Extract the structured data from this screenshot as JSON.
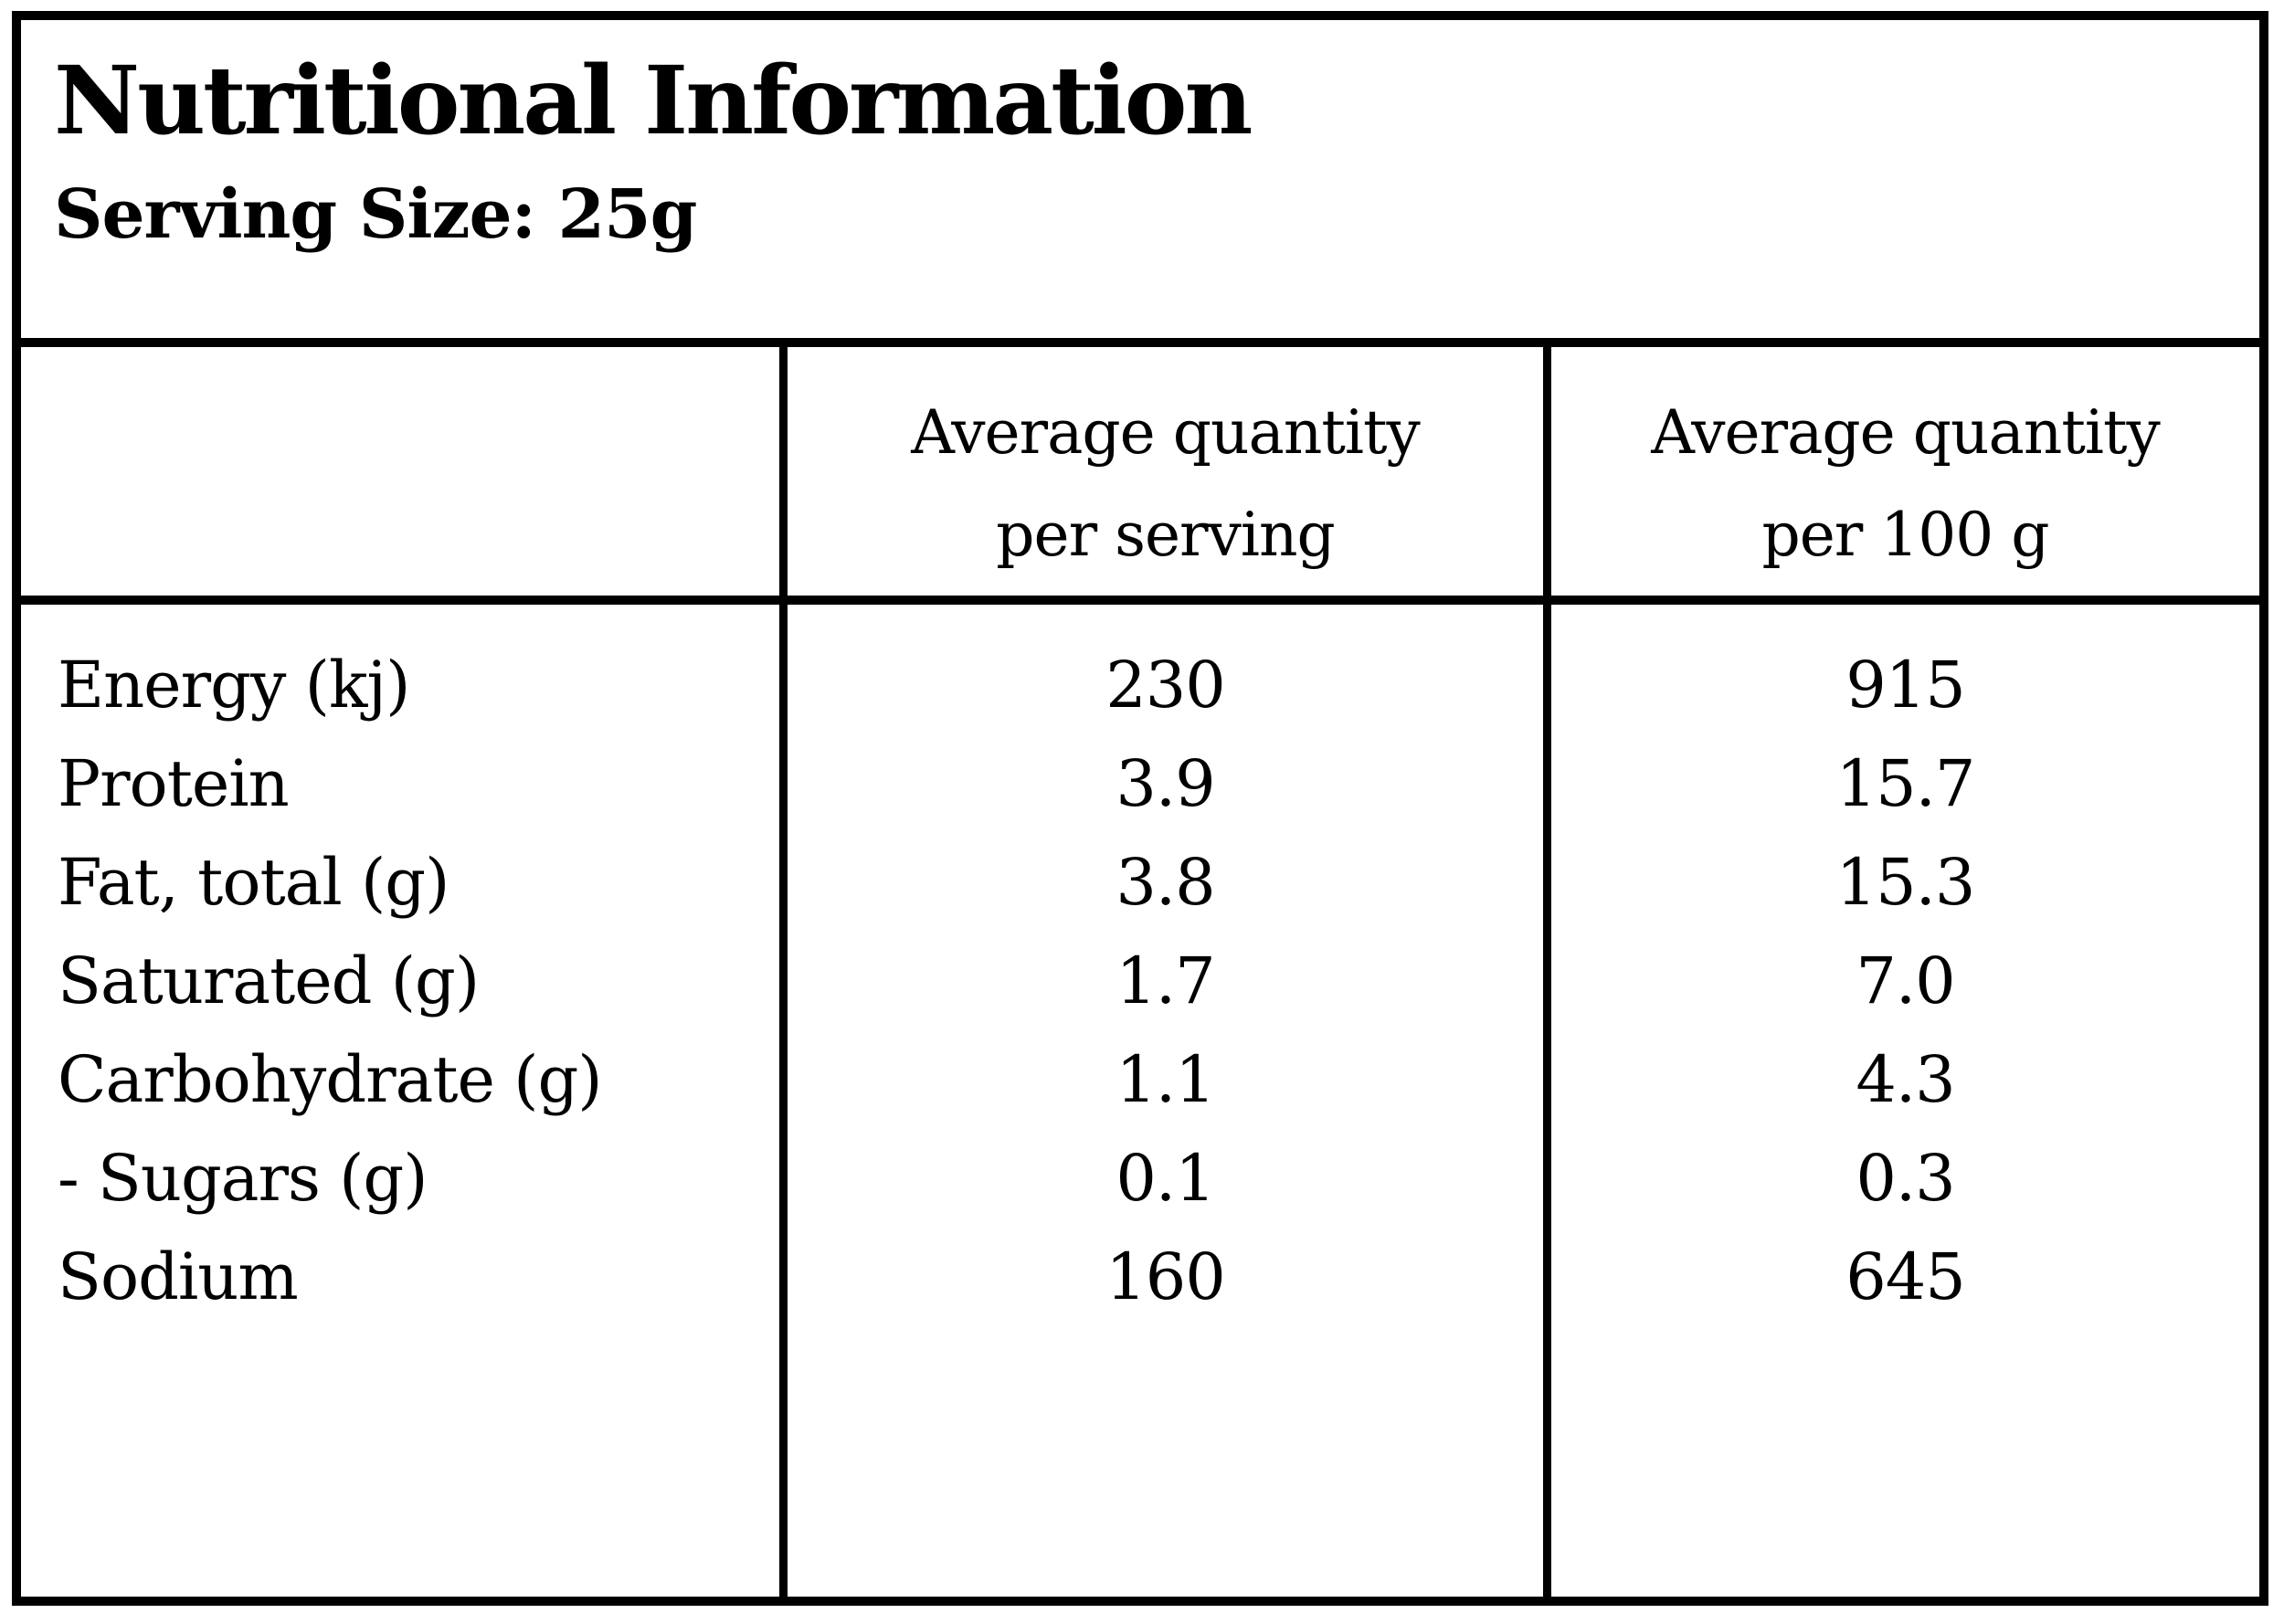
{
  "page": {
    "background_color": "#ffffff",
    "text_color": "#000000",
    "border_color": "#000000"
  },
  "header": {
    "title": "Nutritional Information",
    "serving_size": "Serving Size: 25g"
  },
  "table": {
    "column_headers": {
      "nutrient": "",
      "per_serving": {
        "line1": "Average quantity",
        "line2": "per serving"
      },
      "per_100g": {
        "line1": "Average quantity",
        "line2": "per 100 g"
      }
    },
    "rows": [
      {
        "nutrient": "Energy (kj)",
        "per_serving": "230",
        "per_100g": "915"
      },
      {
        "nutrient": "Protein",
        "per_serving": "3.9",
        "per_100g": "15.7"
      },
      {
        "nutrient": "Fat, total (g)",
        "per_serving": "3.8",
        "per_100g": "15.3"
      },
      {
        "nutrient": "Saturated (g)",
        "per_serving": "1.7",
        "per_100g": "7.0"
      },
      {
        "nutrient": "Carbohydrate (g)",
        "per_serving": "1.1",
        "per_100g": "4.3"
      },
      {
        "nutrient": "- Sugars (g)",
        "per_serving": "0.1",
        "per_100g": "0.3"
      },
      {
        "nutrient": "Sodium",
        "per_serving": "160",
        "per_100g": "645"
      }
    ]
  }
}
